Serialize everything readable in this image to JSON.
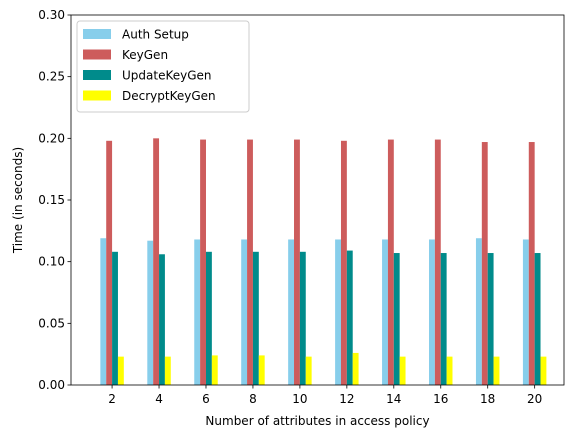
{
  "chart_data": {
    "type": "bar",
    "xlabel": "Number of attributes in access policy",
    "ylabel": "Time (in seconds)",
    "ylim": [
      0,
      0.3
    ],
    "yticks": [
      "0.00",
      "0.05",
      "0.10",
      "0.15",
      "0.20",
      "0.25",
      "0.30"
    ],
    "categories": [
      "2",
      "4",
      "6",
      "8",
      "10",
      "12",
      "14",
      "16",
      "18",
      "20"
    ],
    "legend_position": "top-left",
    "grid": false,
    "series": [
      {
        "name": "Auth Setup",
        "color": "#87ceeb",
        "values": [
          0.119,
          0.117,
          0.118,
          0.118,
          0.118,
          0.118,
          0.118,
          0.118,
          0.119,
          0.118
        ]
      },
      {
        "name": "KeyGen",
        "color": "#cd5c5c",
        "values": [
          0.198,
          0.2,
          0.199,
          0.199,
          0.199,
          0.198,
          0.199,
          0.199,
          0.197,
          0.197
        ]
      },
      {
        "name": "UpdateKeyGen",
        "color": "#008b8b",
        "values": [
          0.108,
          0.106,
          0.108,
          0.108,
          0.108,
          0.109,
          0.107,
          0.107,
          0.107,
          0.107
        ]
      },
      {
        "name": "DecryptKeyGen",
        "color": "#ffff00",
        "values": [
          0.023,
          0.023,
          0.024,
          0.024,
          0.023,
          0.026,
          0.023,
          0.023,
          0.023,
          0.023
        ]
      }
    ]
  }
}
